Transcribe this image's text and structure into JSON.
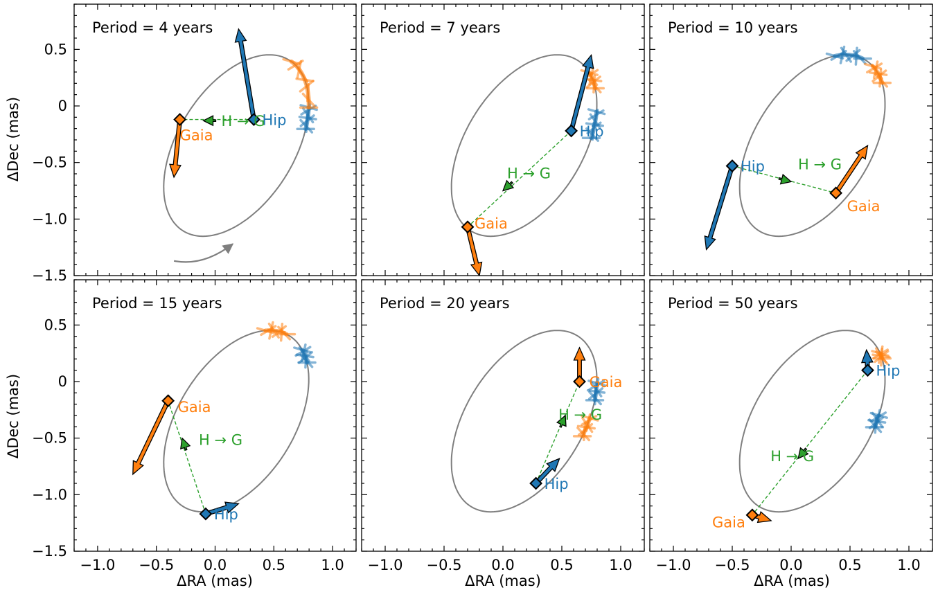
{
  "colors": {
    "hip": "#1f77b4",
    "gaia": "#ff7f0e",
    "hg": "#2ca02c",
    "orbit": "#7f7f7f"
  },
  "axes": {
    "xlabel": "ΔRA (mas)",
    "ylabel": "ΔDec (mas)",
    "xlim": [
      -1.2,
      1.2
    ],
    "ylim": [
      -1.5,
      0.9
    ],
    "xticks": [
      "−1.0",
      "−0.5",
      "0.0",
      "0.5",
      "1.0"
    ],
    "yticks": [
      "0.5",
      "0",
      "−0.5",
      "−1.0",
      "−1.5"
    ]
  },
  "chart_data": [
    {
      "type": "line",
      "title": "Period = 4 years",
      "orbit": {
        "center": [
          0.18,
          -0.35
        ],
        "semi_major": 0.88,
        "semi_minor": 0.5,
        "angle_deg": 60
      },
      "hip": {
        "label": "Hip",
        "pos": [
          0.33,
          -0.12
        ],
        "vec_end": [
          0.2,
          0.68
        ]
      },
      "gaia": {
        "label": "Gaia",
        "pos": [
          -0.3,
          -0.12
        ],
        "vec_end": [
          -0.35,
          -0.63
        ]
      },
      "hg": {
        "label": "H → G",
        "end": [
          -0.1,
          -0.13
        ]
      },
      "hip_arc": [
        0.5,
        0.75
      ],
      "gaia_arc": [
        0.75,
        1.5
      ],
      "direction_arrow": true
    },
    {
      "type": "line",
      "title": "Period = 7 years",
      "orbit": {
        "center": [
          0.18,
          -0.35
        ],
        "semi_major": 0.88,
        "semi_minor": 0.5,
        "angle_deg": 60
      },
      "hip": {
        "label": "Hip",
        "pos": [
          0.58,
          -0.22
        ],
        "vec_end": [
          0.75,
          0.45
        ]
      },
      "gaia": {
        "label": "Gaia",
        "pos": [
          -0.3,
          -1.07
        ],
        "vec_end": [
          -0.2,
          -1.5
        ]
      },
      "hg": {
        "label": "H → G",
        "end": [
          0.0,
          -0.75
        ]
      },
      "hip_arc": [
        0.4,
        0.7
      ],
      "gaia_arc": [
        1.0,
        1.25
      ],
      "direction_arrow": false
    },
    {
      "type": "line",
      "title": "Period = 10 years",
      "orbit": {
        "center": [
          0.18,
          -0.35
        ],
        "semi_major": 0.88,
        "semi_minor": 0.5,
        "angle_deg": 60
      },
      "hip": {
        "label": "Hip",
        "pos": [
          -0.5,
          -0.53
        ],
        "vec_end": [
          -0.72,
          -1.27
        ]
      },
      "gaia": {
        "label": "Gaia",
        "pos": [
          0.38,
          -0.77
        ],
        "vec_end": [
          0.65,
          -0.35
        ]
      },
      "hg": {
        "label": "H → G",
        "end": [
          0.0,
          -0.67
        ]
      },
      "hip_arc": [
        1.6,
        2.05
      ],
      "gaia_arc": [
        1.08,
        1.38
      ],
      "direction_arrow": false
    },
    {
      "type": "line",
      "title": "Period = 15 years",
      "orbit": {
        "center": [
          0.18,
          -0.35
        ],
        "semi_major": 0.88,
        "semi_minor": 0.5,
        "angle_deg": 60
      },
      "hip": {
        "label": "Hip",
        "pos": [
          -0.08,
          -1.17
        ],
        "vec_end": [
          0.2,
          -1.08
        ]
      },
      "gaia": {
        "label": "Gaia",
        "pos": [
          -0.4,
          -0.17
        ],
        "vec_end": [
          -0.7,
          -0.82
        ]
      },
      "hg": {
        "label": "H → G",
        "end": [
          -0.28,
          -0.5
        ]
      },
      "hip_arc": [
        1.02,
        1.22
      ],
      "gaia_arc": [
        1.6,
        1.95
      ],
      "direction_arrow": false
    },
    {
      "type": "line",
      "title": "Period = 20 years",
      "orbit": {
        "center": [
          0.18,
          -0.35
        ],
        "semi_major": 0.88,
        "semi_minor": 0.5,
        "angle_deg": 60
      },
      "hip": {
        "label": "Hip",
        "pos": [
          0.28,
          -0.9
        ],
        "vec_end": [
          0.48,
          -0.68
        ]
      },
      "gaia": {
        "label": "Gaia",
        "pos": [
          0.65,
          0.0
        ],
        "vec_end": [
          0.65,
          0.3
        ]
      },
      "hg": {
        "label": "H → G",
        "end": [
          0.53,
          -0.3
        ]
      },
      "hip_arc": [
        0.55,
        0.75
      ],
      "gaia_arc": [
        0.15,
        0.35
      ],
      "direction_arrow": false
    },
    {
      "type": "line",
      "title": "Period = 50 years",
      "orbit": {
        "center": [
          0.18,
          -0.35
        ],
        "semi_major": 0.88,
        "semi_minor": 0.5,
        "angle_deg": 60
      },
      "hip": {
        "label": "Hip",
        "pos": [
          0.65,
          0.1
        ],
        "vec_end": [
          0.64,
          0.28
        ]
      },
      "gaia": {
        "label": "Gaia",
        "pos": [
          -0.33,
          -1.18
        ],
        "vec_end": [
          -0.17,
          -1.23
        ]
      },
      "hg": {
        "label": "H → G",
        "end": [
          0.06,
          -0.68
        ]
      },
      "hip_arc": [
        0.25,
        0.38
      ],
      "gaia_arc": [
        1.08,
        1.16
      ],
      "direction_arrow": false
    }
  ]
}
